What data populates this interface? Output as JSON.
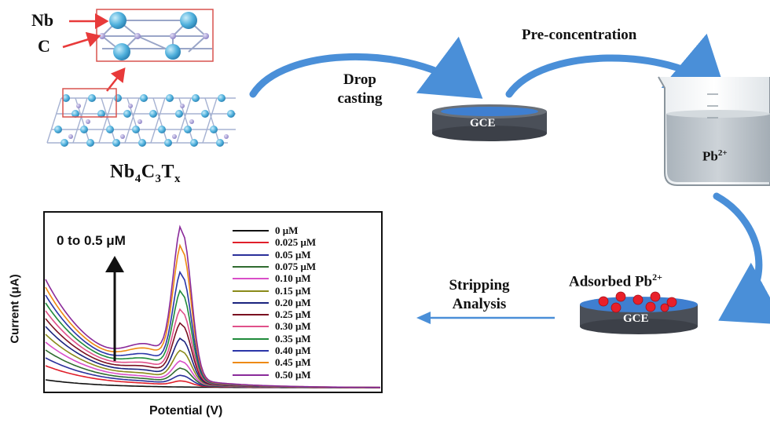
{
  "structure": {
    "atom_labels": [
      "Nb",
      "C"
    ],
    "formula": {
      "main": "Nb",
      "s1": "4",
      "c": "C",
      "s2": "3",
      "t": "T",
      "s3": "x"
    }
  },
  "steps": {
    "drop_casting": [
      "Drop",
      "casting"
    ],
    "pre_concentration": "Pre-concentration",
    "electrode_label": "GCE",
    "ion": {
      "base": "Pb",
      "charge": "2+"
    },
    "adsorbed": {
      "prefix": "Adsorbed ",
      "base": "Pb",
      "charge": "2+"
    },
    "stripping": [
      "Stripping",
      "Analysis"
    ]
  },
  "colors": {
    "arrow_blue": "#4a8fd8",
    "structure_blue": "#5ab4de",
    "structure_purple": "#9b8fd0",
    "highlight_red": "#e83a3a",
    "lead_red": "#e8202a",
    "electrode_dark": "#4a4f58",
    "solution": "#b8c0c8"
  },
  "chart_data": {
    "type": "line",
    "xlabel": "Potential (V)",
    "ylabel": "Current (μA)",
    "annotation": "0 to 0.5 μM",
    "legend_position": "top-right",
    "series": [
      {
        "name": "0 μM",
        "color": "#111111",
        "peak": 0.0
      },
      {
        "name": "0.025 μM",
        "color": "#e01f2a",
        "peak": 0.03
      },
      {
        "name": "0.05 μM",
        "color": "#2a2f9a",
        "peak": 0.06
      },
      {
        "name": "0.075 μM",
        "color": "#2f6b2f",
        "peak": 0.1
      },
      {
        "name": "0.10 μM",
        "color": "#d94fc8",
        "peak": 0.14
      },
      {
        "name": "0.15 μM",
        "color": "#8a8a1a",
        "peak": 0.2
      },
      {
        "name": "0.20 μM",
        "color": "#1a237e",
        "peak": 0.27
      },
      {
        "name": "0.25 μM",
        "color": "#7a1020",
        "peak": 0.36
      },
      {
        "name": "0.30 μM",
        "color": "#e0508a",
        "peak": 0.44
      },
      {
        "name": "0.35 μM",
        "color": "#1f8a3a",
        "peak": 0.55
      },
      {
        "name": "0.40 μM",
        "color": "#2a35a8",
        "peak": 0.66
      },
      {
        "name": "0.45 μM",
        "color": "#ee8a12",
        "peak": 0.82
      },
      {
        "name": "0.50 μM",
        "color": "#8a2a9a",
        "peak": 0.93
      }
    ]
  }
}
